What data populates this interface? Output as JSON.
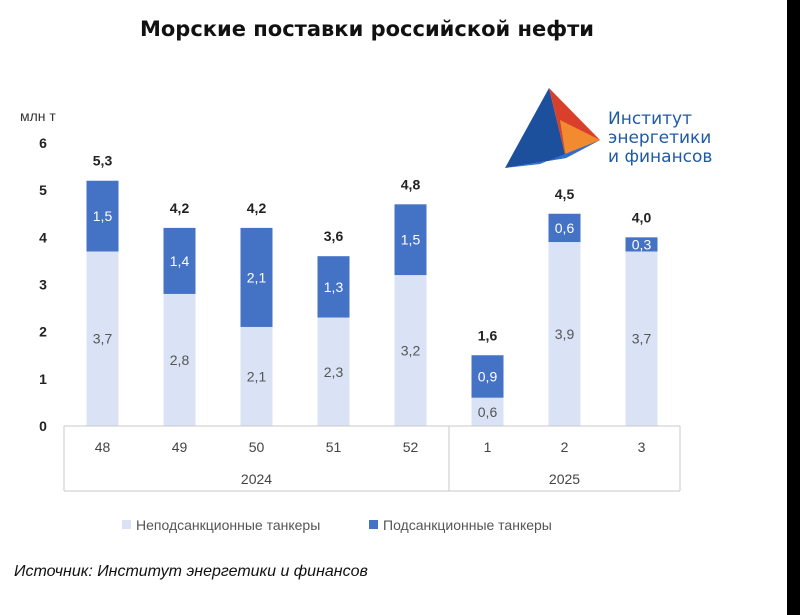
{
  "chart_data": {
    "type": "bar",
    "stacked": true,
    "title": "Морские поставки российской нефти",
    "ylabel": "млн т",
    "ylim": [
      0,
      6
    ],
    "yticks": [
      "0",
      "1",
      "2",
      "3",
      "4",
      "5",
      "6"
    ],
    "categories": [
      "48",
      "49",
      "50",
      "51",
      "52",
      "1",
      "2",
      "3"
    ],
    "category_groups": [
      {
        "label": "2024",
        "count": 5
      },
      {
        "label": "2025",
        "count": 3
      }
    ],
    "series": [
      {
        "name": "Неподсанкционные танкеры",
        "color": "#d9e3f5",
        "values": [
          3.7,
          2.8,
          2.1,
          2.3,
          3.2,
          0.6,
          3.9,
          3.7
        ],
        "labels": [
          "3,7",
          "2,8",
          "2,1",
          "2,3",
          "3,2",
          "0,6",
          "3,9",
          "3,7"
        ]
      },
      {
        "name": "Подсанкционные танкеры",
        "color": "#4472c4",
        "values": [
          1.5,
          1.4,
          2.1,
          1.3,
          1.5,
          0.9,
          0.6,
          0.3
        ],
        "labels": [
          "1,5",
          "1,4",
          "2,1",
          "1,3",
          "1,5",
          "0,9",
          "0,6",
          "0,3"
        ]
      }
    ],
    "totals": [
      "5,3",
      "4,2",
      "4,2",
      "3,6",
      "4,8",
      "1,6",
      "4,5",
      "4,0"
    ],
    "grid": false,
    "legend_position": "bottom"
  },
  "logo": {
    "lines": [
      "Институт",
      "энергетики",
      "и финансов"
    ]
  },
  "source": "Источник: Институт энергетики и финансов"
}
